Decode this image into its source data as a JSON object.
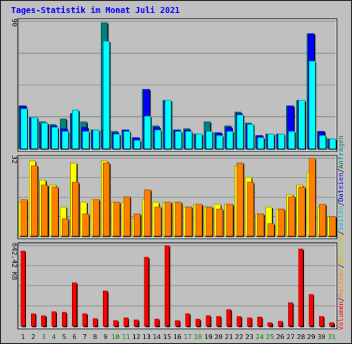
{
  "chart_data": [
    {
      "type": "bar",
      "title": "Tages-Statistik im Monat Juli 2021",
      "y_max_label": "90",
      "ylim": [
        0,
        90
      ],
      "categories": [
        "1",
        "2",
        "3",
        "4",
        "5",
        "6",
        "7",
        "8",
        "9",
        "10",
        "11",
        "12",
        "13",
        "14",
        "15",
        "16",
        "17",
        "18",
        "19",
        "20",
        "21",
        "22",
        "23",
        "24",
        "25",
        "26",
        "27",
        "28",
        "29",
        "30",
        "31"
      ],
      "series": [
        {
          "name": "Anfragen",
          "color": "#008080",
          "values": [
            30,
            22,
            19,
            17,
            21,
            25,
            19,
            13,
            89,
            12,
            13,
            8,
            42,
            16,
            34,
            13,
            14,
            10,
            19,
            11,
            16,
            26,
            18,
            9,
            10,
            10,
            30,
            34,
            81,
            12,
            7
          ]
        },
        {
          "name": "Dateien",
          "color": "#0000ff",
          "values": [
            30,
            22,
            17,
            16,
            14,
            25,
            15,
            13,
            13,
            11,
            13,
            8,
            42,
            15,
            34,
            13,
            13,
            10,
            12,
            11,
            15,
            25,
            17,
            9,
            10,
            10,
            30,
            34,
            81,
            12,
            7
          ]
        },
        {
          "name": "Seiten",
          "color": "#00ffff",
          "values": [
            28,
            22,
            18,
            15,
            12,
            27,
            12,
            13,
            76,
            10,
            12,
            6,
            23,
            13,
            34,
            12,
            12,
            10,
            12,
            9,
            12,
            24,
            17,
            8,
            10,
            10,
            12,
            34,
            62,
            9,
            7
          ]
        }
      ]
    },
    {
      "type": "bar",
      "y_max_label": "32",
      "ylim": [
        0,
        32
      ],
      "categories": [
        "1",
        "2",
        "3",
        "4",
        "5",
        "6",
        "7",
        "8",
        "9",
        "10",
        "11",
        "12",
        "13",
        "14",
        "15",
        "16",
        "17",
        "18",
        "19",
        "20",
        "21",
        "22",
        "23",
        "24",
        "25",
        "26",
        "27",
        "28",
        "29",
        "30",
        "31"
      ],
      "series": [
        {
          "name": "Besuche",
          "color": "#ffff00",
          "values": [
            14,
            31,
            23,
            21,
            12,
            30,
            14,
            15,
            31,
            14,
            14,
            7,
            15,
            14,
            14,
            14,
            12,
            13,
            12,
            13,
            13,
            29,
            24,
            9,
            12,
            11,
            17,
            21,
            26,
            12,
            8
          ]
        },
        {
          "name": "Rechner",
          "color": "#ff8000",
          "values": [
            15,
            29,
            21,
            20,
            7,
            22,
            9,
            15,
            30,
            14,
            16,
            9,
            19,
            12,
            14,
            14,
            12,
            13,
            12,
            11,
            13,
            30,
            22,
            9,
            5,
            11,
            16,
            20,
            32,
            13,
            8
          ]
        }
      ]
    },
    {
      "type": "bar",
      "y_max_label": "642.42 KB",
      "ylim": [
        0,
        642.42
      ],
      "categories": [
        "1",
        "2",
        "3",
        "4",
        "5",
        "6",
        "7",
        "8",
        "9",
        "10",
        "11",
        "12",
        "13",
        "14",
        "15",
        "16",
        "17",
        "18",
        "19",
        "20",
        "21",
        "22",
        "23",
        "24",
        "25",
        "26",
        "27",
        "28",
        "29",
        "30",
        "31"
      ],
      "series": [
        {
          "name": "Volumen",
          "color": "#ff0000",
          "values": [
            600,
            99,
            84,
            118,
            109,
            347,
            97,
            58,
            278,
            44,
            68,
            48,
            551,
            57,
            640,
            44,
            99,
            55,
            82,
            75,
            130,
            78,
            66,
            69,
            26,
            40,
            186,
            615,
            255,
            79,
            30
          ]
        }
      ]
    }
  ],
  "legend": {
    "volumen": "Volumen",
    "rechner": "Rechner",
    "besuche": "Besuche",
    "seiten": "Seiten",
    "dateien": "Dateien",
    "anfragen": "Anfragen",
    "separator": "/"
  },
  "weekend_days": [
    3,
    4,
    10,
    11,
    17,
    18,
    24,
    25,
    31
  ]
}
